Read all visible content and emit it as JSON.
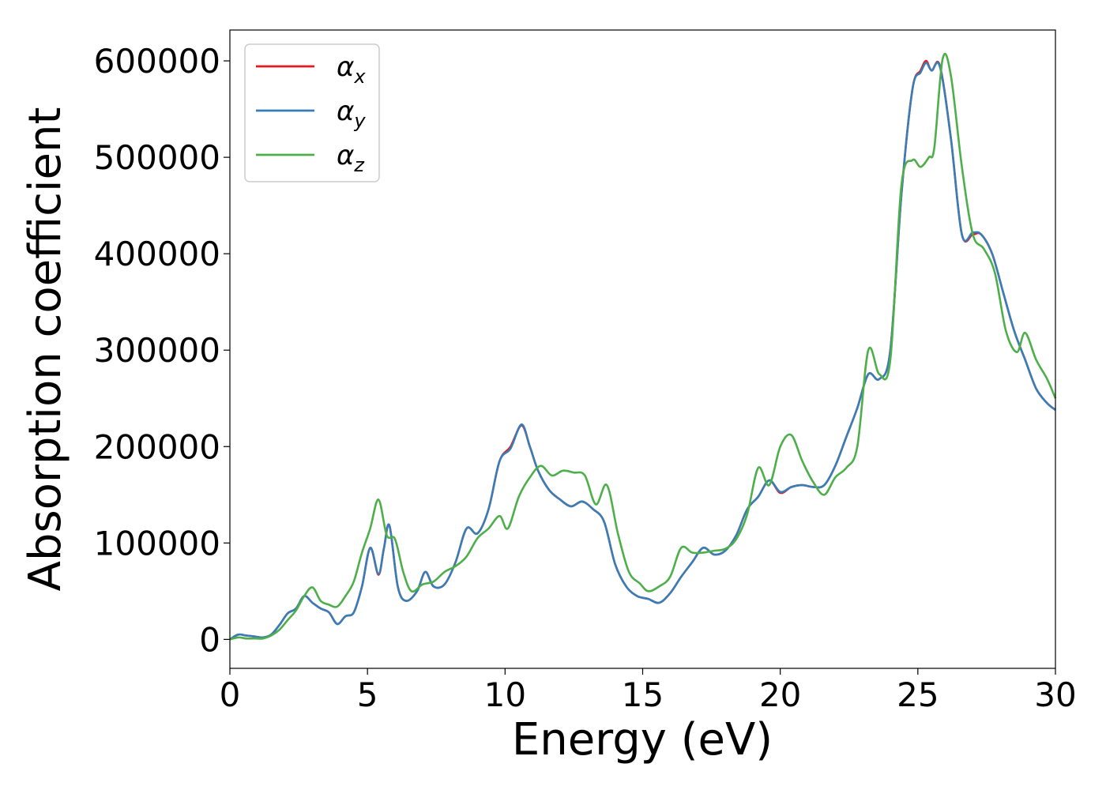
{
  "chart_data": {
    "type": "line",
    "title": "",
    "xlabel": "Energy (eV)",
    "ylabel": "Absorption coefficient",
    "xlim": [
      0,
      30
    ],
    "ylim": [
      -30000,
      632000
    ],
    "xticks": [
      0,
      5,
      10,
      15,
      20,
      25,
      30
    ],
    "yticks": [
      0,
      100000,
      200000,
      300000,
      400000,
      500000,
      600000
    ],
    "grid": false,
    "legend_position": "upper left",
    "colors": {
      "alpha_x": "#e41a1c",
      "alpha_y": "#377eb8",
      "alpha_z": "#4daf4a"
    },
    "series": [
      {
        "key": "alpha_x",
        "name": "α_x",
        "legend_symbol": "α",
        "legend_sub": "x",
        "color": "#e41a1c",
        "x": [
          0,
          0.3,
          0.6,
          0.9,
          1.2,
          1.5,
          1.8,
          2.1,
          2.4,
          2.7,
          3.0,
          3.3,
          3.6,
          3.9,
          4.2,
          4.5,
          4.8,
          5.1,
          5.4,
          5.6,
          5.8,
          6.1,
          6.4,
          6.8,
          7.1,
          7.4,
          7.8,
          8.2,
          8.6,
          9.0,
          9.4,
          9.8,
          10.2,
          10.6,
          10.9,
          11.2,
          11.6,
          12.0,
          12.4,
          12.8,
          13.2,
          13.6,
          14.0,
          14.4,
          14.8,
          15.2,
          15.6,
          16.0,
          16.4,
          16.8,
          17.2,
          17.6,
          18.0,
          18.4,
          18.8,
          19.2,
          19.6,
          20.0,
          20.4,
          20.8,
          21.2,
          21.6,
          22.0,
          22.4,
          22.8,
          23.2,
          23.6,
          24.0,
          24.4,
          24.8,
          25.1,
          25.3,
          25.5,
          25.8,
          26.2,
          26.6,
          27.0,
          27.3,
          27.7,
          28.1,
          28.5,
          28.9,
          29.3,
          29.7,
          30.0
        ],
        "y": [
          0,
          5000,
          4000,
          3000,
          2000,
          5000,
          15000,
          27000,
          32000,
          45000,
          38000,
          32000,
          28000,
          16000,
          24000,
          28000,
          55000,
          95000,
          67000,
          95000,
          118000,
          55000,
          40000,
          50000,
          70000,
          55000,
          57000,
          80000,
          115000,
          110000,
          135000,
          185000,
          200000,
          222000,
          200000,
          175000,
          155000,
          145000,
          138000,
          143000,
          135000,
          122000,
          78000,
          55000,
          45000,
          42000,
          38000,
          48000,
          65000,
          80000,
          95000,
          88000,
          92000,
          108000,
          135000,
          148000,
          165000,
          152000,
          158000,
          160000,
          158000,
          160000,
          180000,
          210000,
          240000,
          275000,
          270000,
          300000,
          460000,
          570000,
          590000,
          600000,
          590000,
          595000,
          520000,
          420000,
          420000,
          420000,
          400000,
          360000,
          320000,
          290000,
          260000,
          245000,
          238000
        ]
      },
      {
        "key": "alpha_y",
        "name": "α_y",
        "legend_symbol": "α",
        "legend_sub": "y",
        "color": "#377eb8",
        "x": [
          0,
          0.3,
          0.6,
          0.9,
          1.2,
          1.5,
          1.8,
          2.1,
          2.4,
          2.7,
          3.0,
          3.3,
          3.6,
          3.9,
          4.2,
          4.5,
          4.8,
          5.1,
          5.4,
          5.6,
          5.8,
          6.1,
          6.4,
          6.8,
          7.1,
          7.4,
          7.8,
          8.2,
          8.6,
          9.0,
          9.4,
          9.8,
          10.2,
          10.6,
          10.9,
          11.2,
          11.6,
          12.0,
          12.4,
          12.8,
          13.2,
          13.6,
          14.0,
          14.4,
          14.8,
          15.2,
          15.6,
          16.0,
          16.4,
          16.8,
          17.2,
          17.6,
          18.0,
          18.4,
          18.8,
          19.2,
          19.6,
          20.0,
          20.4,
          20.8,
          21.2,
          21.6,
          22.0,
          22.4,
          22.8,
          23.2,
          23.6,
          24.0,
          24.4,
          24.8,
          25.1,
          25.3,
          25.5,
          25.8,
          26.2,
          26.6,
          27.0,
          27.3,
          27.7,
          28.1,
          28.5,
          28.9,
          29.3,
          29.7,
          30.0
        ],
        "y": [
          0,
          5000,
          4000,
          3000,
          2000,
          5000,
          15000,
          27000,
          32000,
          45000,
          38000,
          32000,
          28000,
          16000,
          24000,
          28000,
          55000,
          95000,
          68000,
          95000,
          118000,
          55000,
          40000,
          50000,
          70000,
          55000,
          57000,
          80000,
          115000,
          110000,
          135000,
          185000,
          198000,
          223000,
          200000,
          175000,
          155000,
          145000,
          138000,
          143000,
          135000,
          122000,
          78000,
          55000,
          45000,
          42000,
          38000,
          48000,
          65000,
          80000,
          95000,
          88000,
          92000,
          108000,
          135000,
          148000,
          165000,
          153000,
          158000,
          160000,
          158000,
          160000,
          180000,
          210000,
          240000,
          275000,
          270000,
          300000,
          460000,
          570000,
          588000,
          598000,
          590000,
          594000,
          520000,
          420000,
          422000,
          420000,
          400000,
          360000,
          320000,
          290000,
          260000,
          245000,
          238000
        ]
      },
      {
        "key": "alpha_z",
        "name": "α_z",
        "legend_symbol": "α",
        "legend_sub": "z",
        "color": "#4daf4a",
        "x": [
          0,
          0.3,
          0.6,
          0.9,
          1.2,
          1.5,
          1.8,
          2.1,
          2.4,
          2.7,
          3.0,
          3.3,
          3.6,
          3.9,
          4.2,
          4.5,
          4.8,
          5.1,
          5.4,
          5.7,
          6.0,
          6.3,
          6.6,
          7.0,
          7.4,
          7.8,
          8.2,
          8.6,
          9.0,
          9.4,
          9.8,
          10.1,
          10.5,
          10.9,
          11.3,
          11.7,
          12.1,
          12.5,
          12.9,
          13.3,
          13.7,
          14.1,
          14.5,
          14.9,
          15.2,
          15.6,
          16.0,
          16.4,
          16.8,
          17.2,
          17.6,
          18.0,
          18.4,
          18.8,
          19.2,
          19.6,
          20.0,
          20.4,
          20.8,
          21.2,
          21.6,
          22.0,
          22.4,
          22.8,
          23.2,
          23.6,
          24.0,
          24.4,
          24.8,
          25.1,
          25.4,
          25.6,
          25.9,
          26.2,
          26.6,
          27.0,
          27.4,
          27.8,
          28.2,
          28.6,
          28.9,
          29.3,
          29.7,
          30.0
        ],
        "y": [
          0,
          2000,
          1000,
          1000,
          1000,
          4000,
          10000,
          20000,
          30000,
          45000,
          54000,
          40000,
          36000,
          34000,
          45000,
          60000,
          90000,
          115000,
          145000,
          108000,
          104000,
          70000,
          50000,
          57000,
          60000,
          70000,
          76000,
          86000,
          105000,
          115000,
          128000,
          115000,
          148000,
          168000,
          180000,
          170000,
          175000,
          173000,
          170000,
          140000,
          160000,
          110000,
          70000,
          58000,
          50000,
          55000,
          65000,
          95000,
          90000,
          90000,
          92000,
          94000,
          104000,
          130000,
          178000,
          160000,
          200000,
          212000,
          185000,
          163000,
          150000,
          168000,
          178000,
          200000,
          300000,
          275000,
          290000,
          470000,
          497000,
          490000,
          500000,
          510000,
          602000,
          585000,
          490000,
          420000,
          405000,
          380000,
          320000,
          298000,
          318000,
          290000,
          270000,
          250000
        ]
      }
    ]
  }
}
